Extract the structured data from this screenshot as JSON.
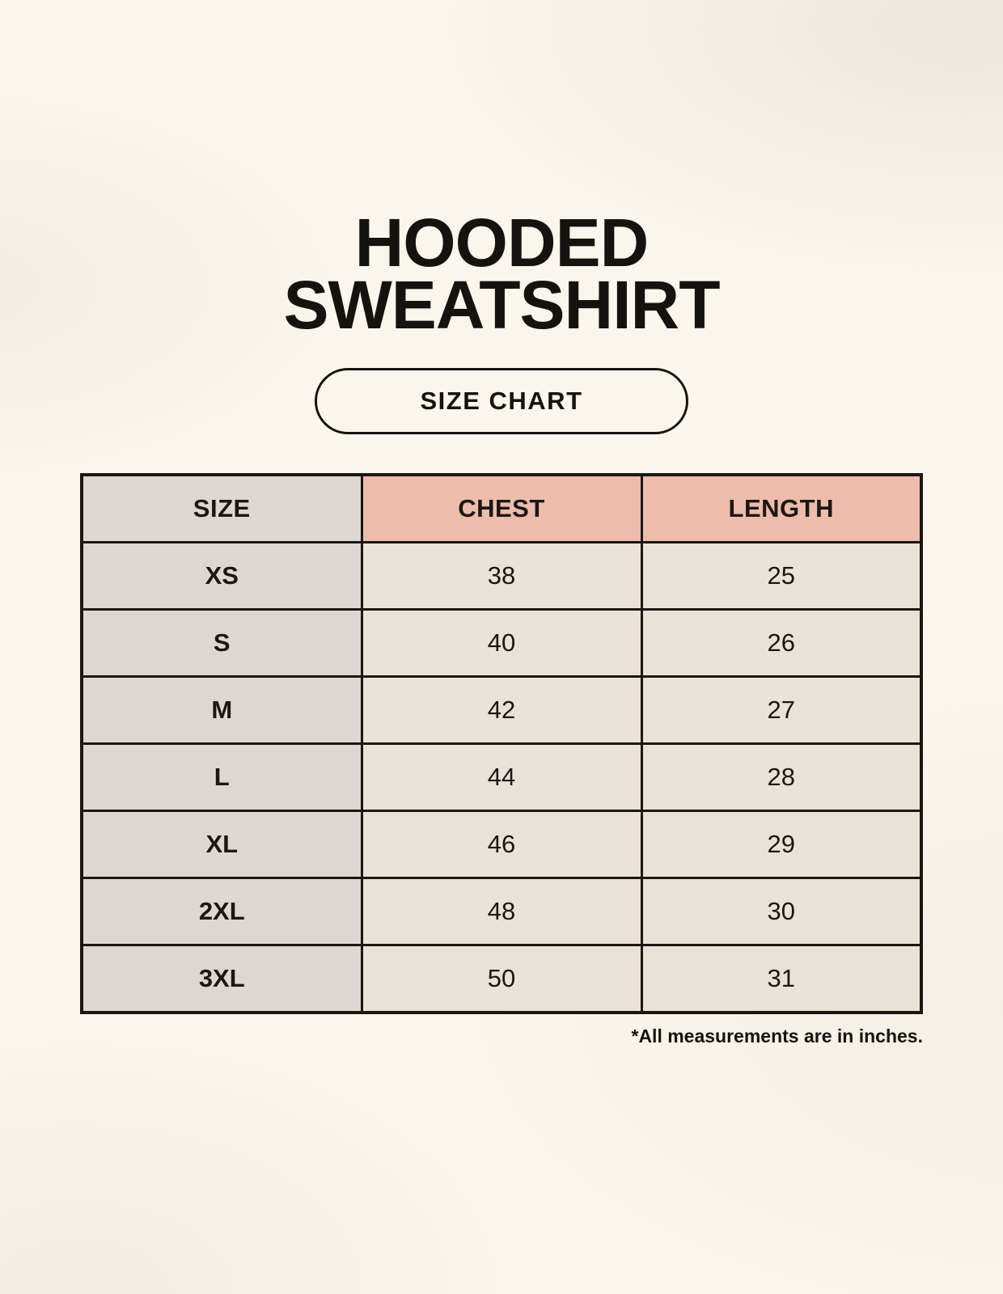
{
  "header": {
    "title_line1": "HOODED",
    "title_line2": "SWEATSHIRT",
    "badge_label": "SIZE CHART"
  },
  "footnote": {
    "text": "*All measurements are in inches."
  },
  "colors": {
    "background": "#faf6ee",
    "header_accent": "#eebcab",
    "size_column": "#ded7d1",
    "value_cell": "#e9e2d6",
    "border": "#1a1712",
    "text": "#15130f"
  },
  "chart_data": {
    "type": "table",
    "title": "HOODED SWEATSHIRT — SIZE CHART",
    "columns": [
      "SIZE",
      "CHEST",
      "LENGTH"
    ],
    "rows": [
      {
        "size": "XS",
        "chest": 38,
        "length": 25
      },
      {
        "size": "S",
        "chest": 40,
        "length": 26
      },
      {
        "size": "M",
        "chest": 42,
        "length": 27
      },
      {
        "size": "L",
        "chest": 44,
        "length": 28
      },
      {
        "size": "XL",
        "chest": 46,
        "length": 29
      },
      {
        "size": "2XL",
        "chest": 48,
        "length": 30
      },
      {
        "size": "3XL",
        "chest": 50,
        "length": 31
      }
    ],
    "units": "inches"
  }
}
